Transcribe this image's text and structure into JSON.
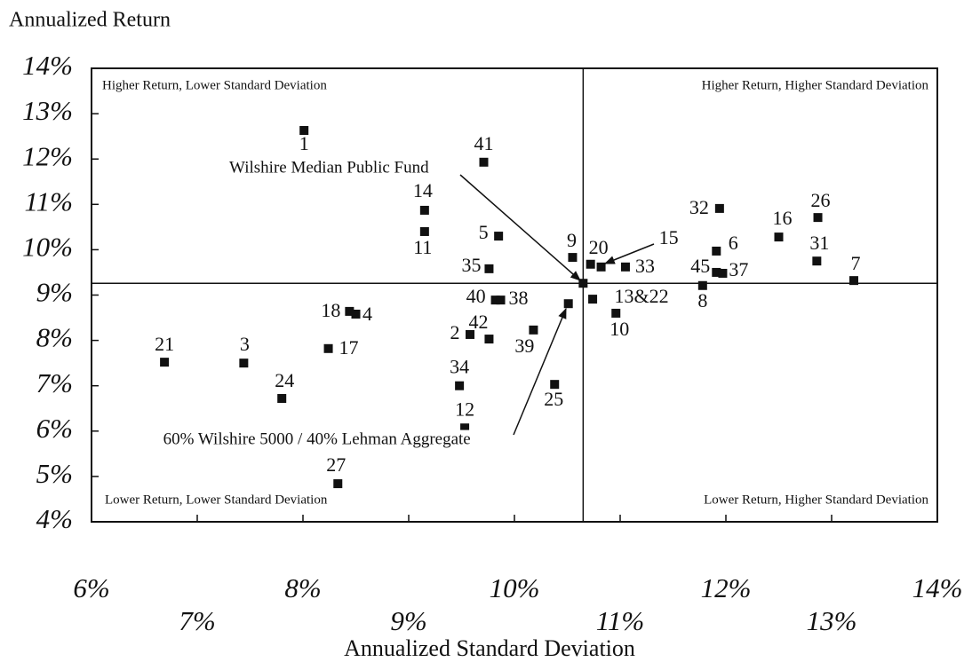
{
  "chart_data": {
    "type": "scatter",
    "title": "Annualized Return",
    "x_label": "Annualized Standard Deviation",
    "xlim": [
      6,
      14
    ],
    "ylim": [
      4,
      14
    ],
    "xticks": [
      {
        "value": 6,
        "label": "6%"
      },
      {
        "value": 7,
        "label": "7%"
      },
      {
        "value": 8,
        "label": "8%"
      },
      {
        "value": 9,
        "label": "9%"
      },
      {
        "value": 10,
        "label": "10%"
      },
      {
        "value": 11,
        "label": "11%"
      },
      {
        "value": 12,
        "label": "12%"
      },
      {
        "value": 13,
        "label": "13%"
      },
      {
        "value": 14,
        "label": "14%"
      }
    ],
    "yticks": [
      {
        "value": 4,
        "label": "4%"
      },
      {
        "value": 5,
        "label": "5%"
      },
      {
        "value": 6,
        "label": "6%"
      },
      {
        "value": 7,
        "label": "7%"
      },
      {
        "value": 8,
        "label": "8%"
      },
      {
        "value": 9,
        "label": "9%"
      },
      {
        "value": 10,
        "label": "10%"
      },
      {
        "value": 11,
        "label": "11%"
      },
      {
        "value": 12,
        "label": "12%"
      },
      {
        "value": 13,
        "label": "13%"
      },
      {
        "value": 14,
        "label": "14%"
      }
    ],
    "quadrant_labels": [
      "Higher Return, Lower Standard Deviation",
      "Higher Return, Higher Standard Deviation",
      "Lower Return, Lower Standard Deviation",
      "Lower Return, Higher Standard Deviation"
    ],
    "color": "#111111",
    "point_labels": [
      "1",
      "41",
      "14",
      "11",
      "5",
      "35",
      "40",
      "38",
      "9",
      "20",
      "15",
      "33",
      "13&22",
      "10",
      "2",
      "42",
      "39",
      "34",
      "25",
      "12",
      "27",
      "18",
      "4",
      "17",
      "3",
      "21",
      "24",
      "32",
      "16",
      "26",
      "31",
      "7",
      "6",
      "45",
      "37",
      "8",
      "Wilshire Median Public Fund",
      "60% Wilshire 5000 / 40% Lehman Aggregate"
    ],
    "x": [
      8.01,
      9.71,
      9.15,
      9.15,
      9.85,
      9.76,
      9.82,
      9.87,
      10.55,
      10.72,
      10.82,
      11.05,
      10.74,
      10.96,
      9.58,
      9.76,
      10.18,
      9.48,
      10.38,
      9.53,
      8.33,
      8.44,
      8.5,
      8.24,
      7.44,
      6.69,
      7.8,
      11.94,
      12.5,
      12.87,
      12.86,
      13.21,
      11.91,
      11.91,
      11.97,
      11.78,
      10.65,
      10.51
    ],
    "values": [
      12.63,
      11.93,
      10.87,
      10.4,
      10.3,
      9.58,
      8.89,
      8.89,
      9.83,
      9.68,
      9.62,
      9.62,
      8.91,
      8.6,
      8.13,
      8.03,
      8.23,
      7.0,
      7.03,
      6.07,
      4.84,
      8.64,
      8.58,
      7.82,
      7.5,
      7.52,
      6.72,
      10.91,
      10.28,
      10.71,
      9.75,
      9.32,
      9.97,
      9.5,
      9.48,
      9.21,
      9.26,
      8.81
    ]
  }
}
